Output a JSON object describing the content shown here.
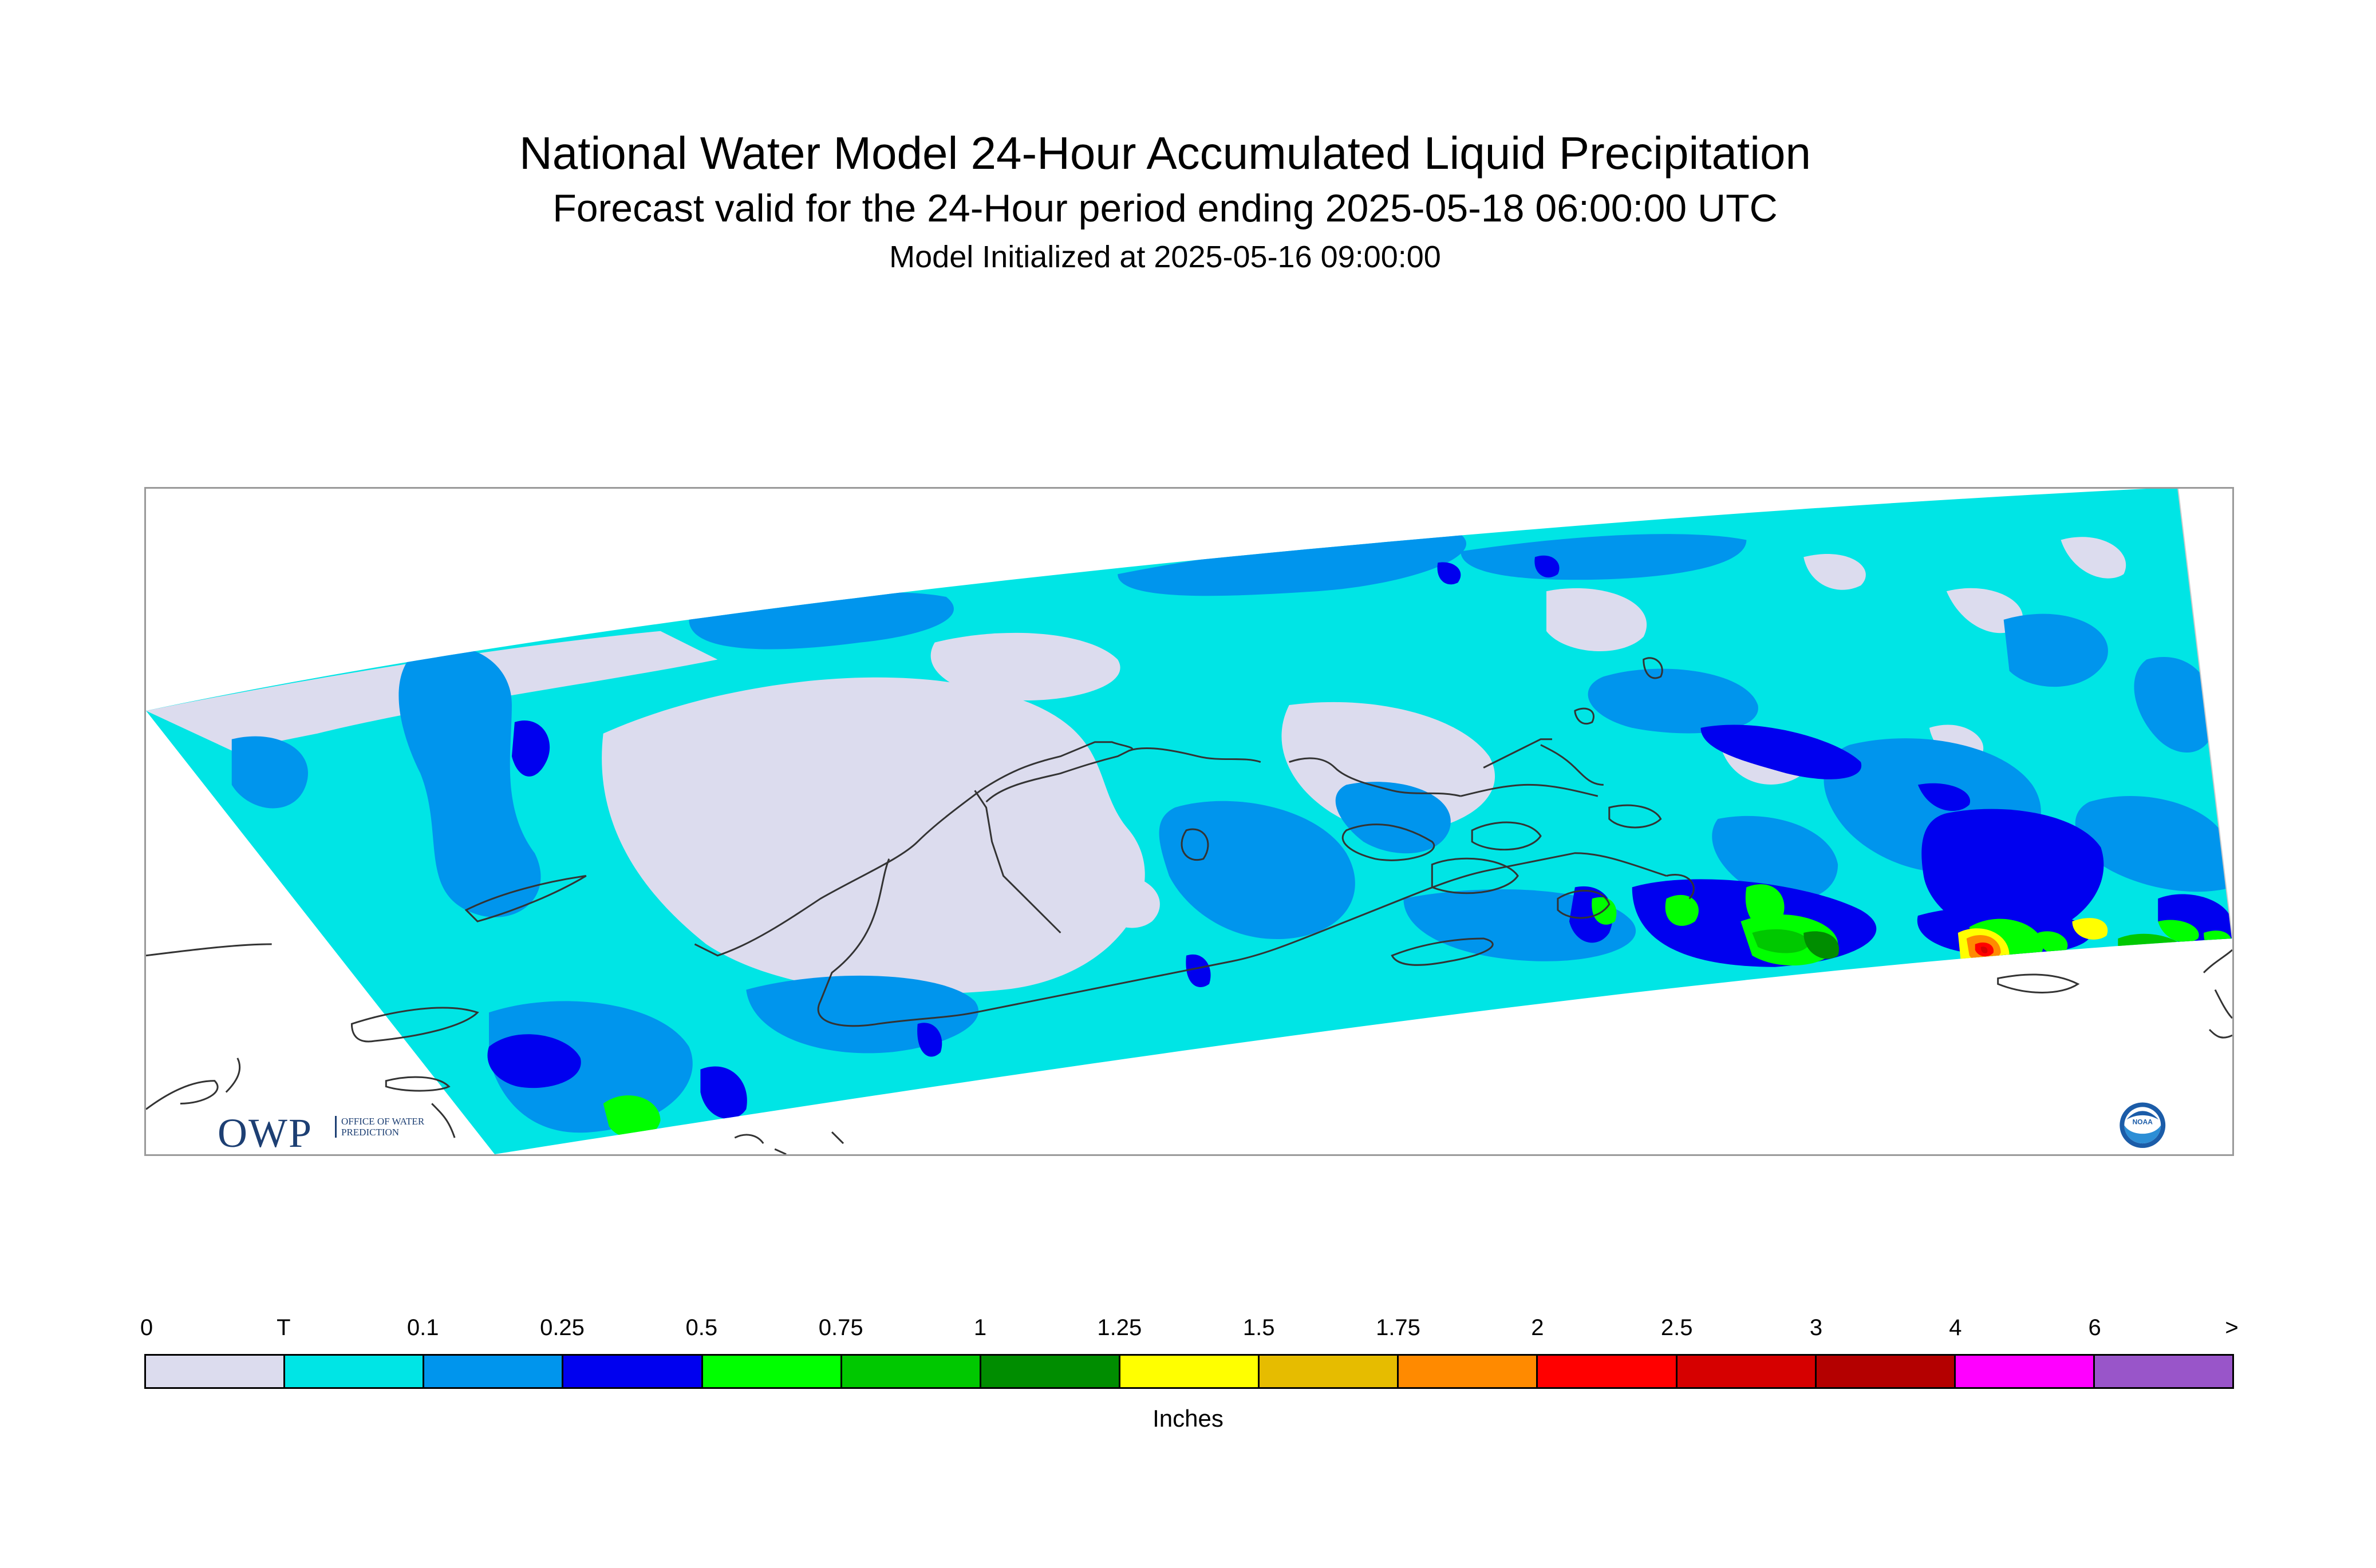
{
  "titles": {
    "main": "National Water Model 24-Hour Accumulated Liquid Precipitation",
    "forecast": "Forecast valid for the 24-Hour period ending 2025-05-18 06:00:00 UTC",
    "init": "Model Initialized at 2025-05-16 09:00:00"
  },
  "logos": {
    "owp_text": "OWP",
    "owp_subtext": "OFFICE OF WATER PREDICTION",
    "noaa_icon": "noaa-logo-icon"
  },
  "legend": {
    "labels": [
      "0",
      "T",
      "0.1",
      "0.25",
      "0.5",
      "0.75",
      "1",
      "1.25",
      "1.5",
      "1.75",
      "2",
      "2.5",
      "3",
      "4",
      "6",
      ">"
    ],
    "colors": [
      "#dcdcee",
      "#00e5e5",
      "#0095ed",
      "#0000ef",
      "#00ff00",
      "#00c800",
      "#008d00",
      "#ffff00",
      "#e6bc00",
      "#ff8a00",
      "#ff0000",
      "#d60000",
      "#b40000",
      "#ff00ff",
      "#9955c9"
    ],
    "unit": "Inches"
  },
  "map": {
    "background_color": "#00e5e5",
    "coastline_color": "#333333"
  }
}
